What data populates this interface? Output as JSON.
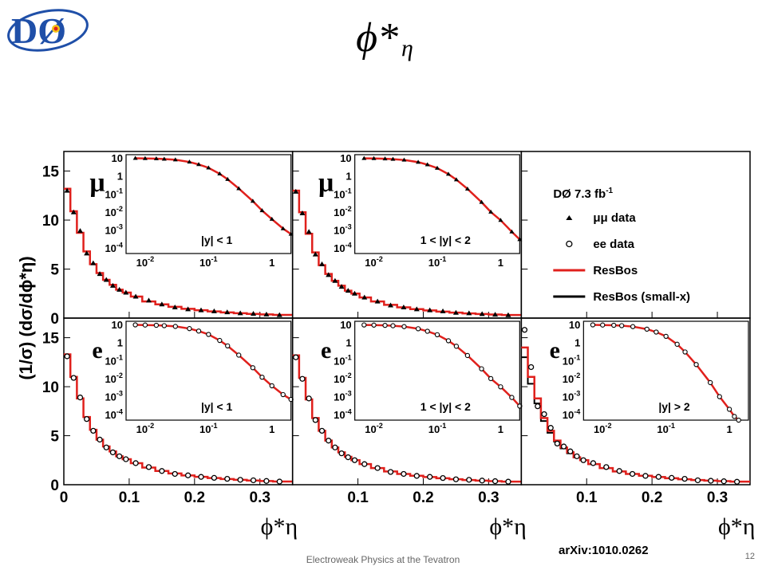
{
  "slide": {
    "title_main": "ϕ*",
    "title_sub": "η",
    "footer": "Electroweak Physics at the Tevatron",
    "page_number": "12",
    "arxiv": "arXiv:1010.0262",
    "logo_text": "DØ"
  },
  "colors": {
    "resbos": "#e0201c",
    "small_x": "#000000",
    "axis": "#000000",
    "background": "#ffffff"
  },
  "legend": {
    "title": "DØ 7.3 fb",
    "title_sup": "-1",
    "entries": [
      {
        "label": "μμ data",
        "marker": "triangle"
      },
      {
        "label": "ee data",
        "marker": "open-circle"
      },
      {
        "label": "ResBos",
        "line": "red"
      },
      {
        "label": "ResBos (small-x)",
        "line": "black"
      }
    ]
  },
  "chart_data": {
    "type": "line",
    "ylabel": "(1/σ) (dσ/dϕ*η)",
    "xlabel": "ϕ*η",
    "main_xlim": [
      0,
      0.35
    ],
    "main_ylim": [
      0,
      17
    ],
    "main_xticks": [
      "0",
      "0.1",
      "0.2",
      "0.3"
    ],
    "main_xticks_first_column_only": [
      "0"
    ],
    "main_yticks": [
      "0",
      "5",
      "10",
      "15"
    ],
    "inset_xlim_log": [
      0.005,
      2
    ],
    "inset_xticks": [
      {
        "base": "10",
        "exp": "-2"
      },
      {
        "base": "10",
        "exp": "-1"
      },
      {
        "base": "1",
        "exp": ""
      }
    ],
    "inset_yticks": [
      {
        "base": "10",
        "exp": ""
      },
      {
        "base": "1",
        "exp": ""
      },
      {
        "base": "10",
        "exp": "-1"
      },
      {
        "base": "10",
        "exp": "-2"
      },
      {
        "base": "10",
        "exp": "-3"
      },
      {
        "base": "10",
        "exp": "-4"
      }
    ],
    "panels": [
      {
        "channel": "μ",
        "region": "|y| < 1",
        "marker": "triangle",
        "x": [
          0.005,
          0.015,
          0.025,
          0.035,
          0.045,
          0.055,
          0.065,
          0.075,
          0.085,
          0.095,
          0.11,
          0.13,
          0.15,
          0.17,
          0.19,
          0.21,
          0.23,
          0.25,
          0.27,
          0.29,
          0.31,
          0.33
        ],
        "resbos": [
          13.2,
          10.9,
          8.7,
          6.8,
          5.5,
          4.6,
          3.9,
          3.4,
          2.9,
          2.6,
          2.2,
          1.7,
          1.4,
          1.15,
          0.95,
          0.8,
          0.68,
          0.58,
          0.5,
          0.43,
          0.38,
          0.33
        ],
        "data": [
          13.0,
          10.8,
          8.9,
          6.6,
          5.6,
          4.5,
          3.9,
          3.3,
          2.9,
          2.6,
          2.2,
          1.8,
          1.4,
          1.1,
          0.9,
          0.8,
          0.7,
          0.6,
          0.5,
          0.45,
          0.38,
          0.32
        ],
        "inset_x": [
          0.007,
          0.01,
          0.015,
          0.02,
          0.03,
          0.05,
          0.07,
          0.1,
          0.15,
          0.2,
          0.3,
          0.5,
          0.7,
          1.0,
          1.5,
          2.0
        ],
        "inset_y": [
          9.5,
          9.3,
          9.0,
          8.6,
          7.8,
          5.9,
          4.3,
          2.8,
          1.3,
          0.65,
          0.2,
          0.04,
          0.012,
          0.004,
          0.0012,
          0.0006
        ]
      },
      {
        "channel": "μ",
        "region": "1 < |y| < 2",
        "marker": "triangle",
        "x": [
          0.005,
          0.015,
          0.025,
          0.035,
          0.045,
          0.055,
          0.065,
          0.075,
          0.085,
          0.095,
          0.11,
          0.13,
          0.15,
          0.17,
          0.19,
          0.21,
          0.23,
          0.25,
          0.27,
          0.29,
          0.31,
          0.33
        ],
        "resbos": [
          13.0,
          10.8,
          8.6,
          6.7,
          5.4,
          4.5,
          3.8,
          3.3,
          2.8,
          2.5,
          2.1,
          1.7,
          1.35,
          1.1,
          0.92,
          0.78,
          0.66,
          0.56,
          0.48,
          0.42,
          0.37,
          0.32
        ],
        "data": [
          12.9,
          10.7,
          8.8,
          6.5,
          5.5,
          4.4,
          3.8,
          3.2,
          2.8,
          2.5,
          2.1,
          1.7,
          1.3,
          1.1,
          0.9,
          0.8,
          0.7,
          0.55,
          0.5,
          0.42,
          0.36,
          0.31
        ],
        "inset_x": [
          0.007,
          0.01,
          0.015,
          0.02,
          0.03,
          0.05,
          0.07,
          0.1,
          0.15,
          0.2,
          0.3,
          0.5,
          0.7,
          1.0,
          1.5,
          2.0
        ],
        "inset_y": [
          9.4,
          9.2,
          8.9,
          8.5,
          7.6,
          5.8,
          4.2,
          2.7,
          1.25,
          0.62,
          0.19,
          0.035,
          0.01,
          0.0035,
          0.0008,
          0.0003
        ]
      },
      null,
      {
        "channel": "e",
        "region": "|y| < 1",
        "marker": "open-circle",
        "x": [
          0.005,
          0.015,
          0.025,
          0.035,
          0.045,
          0.055,
          0.065,
          0.075,
          0.085,
          0.095,
          0.11,
          0.13,
          0.15,
          0.17,
          0.19,
          0.21,
          0.23,
          0.25,
          0.27,
          0.29,
          0.31,
          0.33
        ],
        "resbos": [
          13.3,
          11.0,
          8.8,
          6.9,
          5.6,
          4.6,
          3.9,
          3.4,
          2.9,
          2.6,
          2.2,
          1.75,
          1.4,
          1.15,
          0.95,
          0.8,
          0.68,
          0.58,
          0.5,
          0.43,
          0.38,
          0.33
        ],
        "data": [
          13.1,
          10.9,
          8.9,
          6.7,
          5.5,
          4.6,
          3.8,
          3.3,
          2.9,
          2.6,
          2.2,
          1.8,
          1.4,
          1.1,
          0.95,
          0.8,
          0.7,
          0.6,
          0.5,
          0.45,
          0.38,
          0.32
        ],
        "inset_x": [
          0.007,
          0.01,
          0.015,
          0.02,
          0.03,
          0.05,
          0.07,
          0.1,
          0.15,
          0.2,
          0.3,
          0.5,
          0.7,
          1.0,
          1.5,
          2.0
        ],
        "inset_y": [
          9.5,
          9.3,
          9.0,
          8.6,
          7.8,
          5.9,
          4.3,
          2.8,
          1.3,
          0.65,
          0.2,
          0.04,
          0.012,
          0.004,
          0.0013,
          0.0007
        ]
      },
      {
        "channel": "e",
        "region": "1 < |y| < 2",
        "marker": "open-circle",
        "x": [
          0.005,
          0.015,
          0.025,
          0.035,
          0.045,
          0.055,
          0.065,
          0.075,
          0.085,
          0.095,
          0.11,
          0.13,
          0.15,
          0.17,
          0.19,
          0.21,
          0.23,
          0.25,
          0.27,
          0.29,
          0.31,
          0.33
        ],
        "resbos": [
          13.2,
          10.9,
          8.7,
          6.8,
          5.5,
          4.5,
          3.8,
          3.3,
          2.85,
          2.5,
          2.1,
          1.7,
          1.35,
          1.1,
          0.92,
          0.78,
          0.66,
          0.56,
          0.48,
          0.42,
          0.37,
          0.32
        ],
        "data": [
          13.0,
          10.8,
          8.8,
          6.6,
          5.5,
          4.5,
          3.8,
          3.2,
          2.8,
          2.5,
          2.1,
          1.7,
          1.3,
          1.1,
          0.9,
          0.8,
          0.68,
          0.55,
          0.5,
          0.42,
          0.36,
          0.31
        ],
        "inset_x": [
          0.007,
          0.01,
          0.015,
          0.02,
          0.03,
          0.05,
          0.07,
          0.1,
          0.15,
          0.2,
          0.3,
          0.5,
          0.7,
          1.0,
          1.5,
          2.0
        ],
        "inset_y": [
          9.4,
          9.2,
          8.9,
          8.5,
          7.6,
          5.8,
          4.2,
          2.7,
          1.25,
          0.62,
          0.19,
          0.035,
          0.01,
          0.0035,
          0.0009,
          0.0003
        ]
      },
      {
        "channel": "e",
        "region": "|y| > 2",
        "marker": "open-circle",
        "x": [
          0.005,
          0.015,
          0.025,
          0.035,
          0.045,
          0.055,
          0.065,
          0.075,
          0.085,
          0.095,
          0.11,
          0.13,
          0.15,
          0.17,
          0.19,
          0.21,
          0.23,
          0.25,
          0.27,
          0.29,
          0.31,
          0.33
        ],
        "resbos": [
          14.0,
          11.0,
          8.8,
          6.8,
          5.5,
          4.5,
          3.8,
          3.3,
          2.8,
          2.5,
          2.1,
          1.7,
          1.35,
          1.1,
          0.92,
          0.78,
          0.66,
          0.56,
          0.48,
          0.42,
          0.37,
          0.32
        ],
        "small_x": [
          13.0,
          10.3,
          8.3,
          6.5,
          5.3,
          4.4,
          3.7,
          3.2,
          2.8,
          2.5,
          2.1,
          1.7,
          1.35,
          1.1,
          0.92,
          0.78,
          0.66,
          0.56,
          0.48,
          0.42,
          0.37,
          0.32
        ],
        "data": [
          15.8,
          12.0,
          8.0,
          7.2,
          5.8,
          4.2,
          3.9,
          3.4,
          2.9,
          2.5,
          2.2,
          1.8,
          1.4,
          1.1,
          0.9,
          0.8,
          0.7,
          0.6,
          0.45,
          0.4,
          0.35,
          0.3
        ],
        "inset_x": [
          0.007,
          0.01,
          0.015,
          0.02,
          0.03,
          0.05,
          0.07,
          0.1,
          0.15,
          0.2,
          0.3,
          0.5,
          0.7,
          1.0,
          1.2,
          1.4
        ],
        "inset_y": [
          9.5,
          9.3,
          9.0,
          8.6,
          7.6,
          5.5,
          3.8,
          2.2,
          0.8,
          0.3,
          0.06,
          0.006,
          0.001,
          0.0002,
          8e-05,
          5e-05
        ]
      }
    ]
  }
}
